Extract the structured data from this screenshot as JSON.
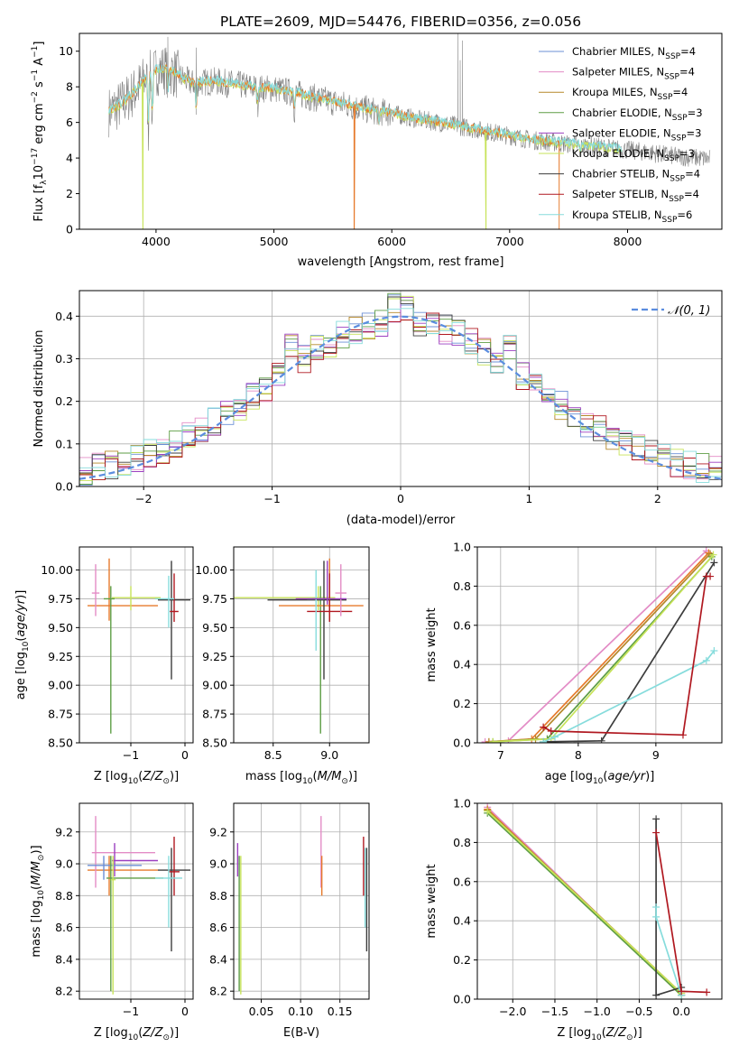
{
  "figure_title": "PLATE=2609, MJD=54476, FIBERID=0356, z=0.056",
  "colors": {
    "Chabrier MILES": "#6b8fd6",
    "Salpeter MILES": "#e38cc6",
    "Kroupa MILES": "#b5882a",
    "Chabrier ELODIE": "#5e9e45",
    "Salpeter ELODIE": "#9b3fc0",
    "Kroupa ELODIE": "#c7e359",
    "Chabrier STELIB": "#3d3d3d",
    "Salpeter STELIB": "#b01820",
    "Kroupa STELIB": "#86dcdc",
    "Orange": "#e67a2c",
    "Data": "#808080",
    "Gaussian": "#5b8ddf"
  },
  "chart_data": [
    {
      "id": "spectrum",
      "type": "line",
      "title": "PLATE=2609, MJD=54476, FIBERID=0356, z=0.056",
      "xlabel": "wavelength [Angstrom, rest frame]",
      "ylabel": "Flux [fλ 10⁻¹⁷ erg cm⁻² s⁻¹ A⁻¹]",
      "xlim": [
        3350,
        8800
      ],
      "ylim": [
        0,
        11
      ],
      "xticks": [
        4000,
        5000,
        6000,
        7000,
        8000
      ],
      "yticks": [
        0,
        2,
        4,
        6,
        8,
        10
      ],
      "grid": false,
      "legend_position": "top-right",
      "legend": [
        {
          "label": "Chabrier MILES, N_SSP=4",
          "main": "Chabrier MILES, N",
          "sub": "SSP",
          "val": "=4"
        },
        {
          "label": "Salpeter MILES, N_SSP=4",
          "main": "Salpeter MILES, N",
          "sub": "SSP",
          "val": "=4"
        },
        {
          "label": "Kroupa MILES, N_SSP=4",
          "main": "Kroupa MILES, N",
          "sub": "SSP",
          "val": "=4"
        },
        {
          "label": "Chabrier ELODIE, N_SSP=3",
          "main": "Chabrier ELODIE, N",
          "sub": "SSP",
          "val": "=3"
        },
        {
          "label": "Salpeter ELODIE, N_SSP=3",
          "main": "Salpeter ELODIE, N",
          "sub": "SSP",
          "val": "=3"
        },
        {
          "label": "Kroupa ELODIE, N_SSP=3",
          "main": "Kroupa ELODIE, N",
          "sub": "SSP",
          "val": "=3"
        },
        {
          "label": "Chabrier STELIB, N_SSP=4",
          "main": "Chabrier STELIB, N",
          "sub": "SSP",
          "val": "=4"
        },
        {
          "label": "Salpeter STELIB, N_SSP=4",
          "main": "Salpeter STELIB, N",
          "sub": "SSP",
          "val": "=4"
        },
        {
          "label": "Kroupa STELIB, N_SSP=6",
          "main": "Kroupa STELIB, N",
          "sub": "SSP",
          "val": "=6"
        }
      ],
      "continuum": [
        [
          3600,
          6.6
        ],
        [
          3700,
          7.0
        ],
        [
          3800,
          7.6
        ],
        [
          3900,
          8.4
        ],
        [
          4000,
          8.9
        ],
        [
          4100,
          9.0
        ],
        [
          4200,
          8.6
        ],
        [
          4300,
          8.2
        ],
        [
          4500,
          8.3
        ],
        [
          4700,
          8.1
        ],
        [
          4900,
          7.9
        ],
        [
          5000,
          7.9
        ],
        [
          5200,
          7.6
        ],
        [
          5400,
          7.3
        ],
        [
          5600,
          7.0
        ],
        [
          5800,
          6.7
        ],
        [
          6000,
          6.5
        ],
        [
          6200,
          6.2
        ],
        [
          6400,
          6.0
        ],
        [
          6600,
          5.75
        ],
        [
          6800,
          5.5
        ],
        [
          7000,
          5.25
        ],
        [
          7200,
          5.0
        ],
        [
          7400,
          4.85
        ],
        [
          7600,
          4.7
        ],
        [
          7800,
          4.6
        ],
        [
          8000,
          4.45
        ],
        [
          8200,
          4.3
        ],
        [
          8400,
          4.1
        ],
        [
          8600,
          4.0
        ],
        [
          8700,
          3.95
        ]
      ],
      "model_dropouts": [
        [
          3890,
          "Kroupa ELODIE"
        ],
        [
          5680,
          "Orange"
        ],
        [
          6800,
          "Kroupa ELODIE"
        ],
        [
          7420,
          "Orange"
        ]
      ],
      "data_spikes": [
        [
          6560,
          11.0
        ],
        [
          6600,
          10.6
        ],
        [
          6580,
          9.5
        ],
        [
          4100,
          10.8
        ],
        [
          4340,
          10.2
        ]
      ]
    },
    {
      "id": "residuals",
      "type": "step",
      "xlabel": "(data-model)/error",
      "ylabel": "Normed distribution",
      "xlim": [
        -2.5,
        2.5
      ],
      "ylim": [
        0,
        0.46
      ],
      "xticks": [
        -2,
        -1,
        0,
        1,
        2
      ],
      "yticks": [
        0.0,
        0.1,
        0.2,
        0.3,
        0.4
      ],
      "grid": true,
      "legend_position": "top-right",
      "legend_label": "𝒩(0, 1)",
      "gaussian": {
        "mean": 0,
        "sigma": 1
      }
    },
    {
      "id": "age-vs-Z",
      "type": "errorbar",
      "xlabel": "Z [log10(Z/Z⊙)]",
      "ylabel": "age  [log10(age/yr)]",
      "xlim": [
        -1.95,
        0.15
      ],
      "ylim": [
        8.5,
        10.2
      ],
      "xticks": [
        -1,
        0
      ],
      "yticks": [
        8.5,
        8.75,
        9.0,
        9.25,
        9.5,
        9.75,
        10.0
      ],
      "grid": true,
      "points": [
        {
          "c": "Orange",
          "x": -1.4,
          "xl": -1.8,
          "xh": -0.5,
          "y": 9.69,
          "yl": 9.56,
          "yh": 10.1
        },
        {
          "c": "Salpeter MILES",
          "x": -1.65,
          "xl": -1.72,
          "xh": -1.58,
          "y": 9.8,
          "yl": 9.6,
          "yh": 10.05
        },
        {
          "c": "Kroupa ELODIE",
          "x": -1.0,
          "xl": -1.35,
          "xh": -0.45,
          "y": 9.76,
          "yl": 9.65,
          "yh": 9.86
        },
        {
          "c": "Chabrier ELODIE",
          "x": -1.37,
          "xl": -1.5,
          "xh": -1.3,
          "y": 9.75,
          "yl": 8.58,
          "yh": 9.86
        },
        {
          "c": "Chabrier STELIB",
          "x": -0.25,
          "xl": -0.5,
          "xh": 0.1,
          "y": 9.74,
          "yl": 9.05,
          "yh": 10.08
        },
        {
          "c": "Salpeter STELIB",
          "x": -0.2,
          "xl": -0.28,
          "xh": -0.12,
          "y": 9.64,
          "yl": 9.55,
          "yh": 9.97
        },
        {
          "c": "Kroupa STELIB",
          "x": -0.3,
          "xl": -0.55,
          "xh": -0.2,
          "y": 9.75,
          "yl": 9.5,
          "yh": 9.95
        }
      ]
    },
    {
      "id": "age-vs-mass",
      "type": "errorbar",
      "xlabel": "mass [log10(M/M⊙)]",
      "xlim": [
        8.15,
        9.35
      ],
      "ylim": [
        8.5,
        10.2
      ],
      "xticks": [
        8.5,
        9.0
      ],
      "yticks": [
        8.5,
        8.75,
        9.0,
        9.25,
        9.5,
        9.75,
        10.0
      ],
      "grid": true,
      "points": [
        {
          "c": "Kroupa ELODIE",
          "x": 8.9,
          "xl": 8.15,
          "xh": 9.05,
          "y": 9.76,
          "yl": 9.65,
          "yh": 9.86
        },
        {
          "c": "Chabrier ELODIE",
          "x": 8.92,
          "xl": 8.85,
          "xh": 9.0,
          "y": 9.75,
          "yl": 8.58,
          "yh": 9.86
        },
        {
          "c": "Orange",
          "x": 9.0,
          "xl": 8.55,
          "xh": 9.3,
          "y": 9.69,
          "yl": 9.56,
          "yh": 10.1
        },
        {
          "c": "Chabrier STELIB",
          "x": 8.95,
          "xl": 8.45,
          "xh": 9.15,
          "y": 9.74,
          "yl": 9.05,
          "yh": 10.08
        },
        {
          "c": "Salpeter STELIB",
          "x": 9.0,
          "xl": 8.8,
          "xh": 9.2,
          "y": 9.64,
          "yl": 9.55,
          "yh": 9.97
        },
        {
          "c": "Kroupa STELIB",
          "x": 8.88,
          "xl": 8.8,
          "xh": 8.95,
          "y": 9.75,
          "yl": 9.3,
          "yh": 10.0
        },
        {
          "c": "Salpeter MILES",
          "x": 9.1,
          "xl": 9.05,
          "xh": 9.15,
          "y": 9.8,
          "yl": 9.6,
          "yh": 10.05
        },
        {
          "c": "Salpeter ELODIE",
          "x": 8.98,
          "xl": 8.7,
          "xh": 9.15,
          "y": 9.75,
          "yl": 9.7,
          "yh": 10.08
        }
      ]
    },
    {
      "id": "massweight-vs-age",
      "type": "line",
      "xlabel": "age  [log10(age/yr)]",
      "ylabel": "mass weight",
      "xlim": [
        6.7,
        9.85
      ],
      "ylim": [
        0,
        1.0
      ],
      "xticks": [
        7,
        8,
        9
      ],
      "yticks": [
        0.0,
        0.2,
        0.4,
        0.6,
        0.8,
        1.0
      ],
      "grid": true,
      "series": [
        {
          "c": "Salpeter MILES",
          "x": [
            6.8,
            7.1,
            9.65
          ],
          "y": [
            0.005,
            0.01,
            0.98
          ]
        },
        {
          "c": "Orange",
          "x": [
            6.85,
            7.4,
            9.68
          ],
          "y": [
            0.005,
            0.02,
            0.97
          ]
        },
        {
          "c": "Kroupa MILES",
          "x": [
            6.85,
            7.45,
            9.7
          ],
          "y": [
            0.005,
            0.02,
            0.965
          ]
        },
        {
          "c": "Chabrier ELODIE",
          "x": [
            6.9,
            7.6,
            9.72
          ],
          "y": [
            0.005,
            0.02,
            0.95
          ]
        },
        {
          "c": "Kroupa ELODIE",
          "x": [
            6.9,
            7.65,
            9.74
          ],
          "y": [
            0.005,
            0.02,
            0.96
          ]
        },
        {
          "c": "Chabrier STELIB",
          "x": [
            7.55,
            8.3,
            9.75
          ],
          "y": [
            0.005,
            0.01,
            0.92
          ]
        },
        {
          "c": "Kroupa STELIB",
          "x": [
            7.55,
            7.7,
            9.65,
            9.75
          ],
          "y": [
            0.005,
            0.03,
            0.42,
            0.47
          ]
        },
        {
          "c": "Salpeter STELIB",
          "x": [
            7.55,
            7.65,
            9.35,
            9.65,
            9.7
          ],
          "y": [
            0.08,
            0.06,
            0.04,
            0.85,
            0.85
          ]
        }
      ]
    },
    {
      "id": "mass-vs-Z",
      "type": "errorbar",
      "xlabel": "Z [log10(Z/Z⊙)]",
      "ylabel": "mass [log10(M/M⊙)]",
      "xlim": [
        -1.95,
        0.15
      ],
      "ylim": [
        8.15,
        9.38
      ],
      "xticks": [
        -1,
        0
      ],
      "yticks": [
        8.2,
        8.4,
        8.6,
        8.8,
        9.0,
        9.2
      ],
      "grid": true,
      "points": [
        {
          "c": "Orange",
          "x": -1.4,
          "xl": -1.8,
          "xh": -0.5,
          "y": 8.96,
          "yl": 8.8,
          "yh": 9.05
        },
        {
          "c": "Salpeter MILES",
          "x": -1.65,
          "xl": -1.72,
          "xh": -0.55,
          "y": 9.07,
          "yl": 8.85,
          "yh": 9.3
        },
        {
          "c": "Salpeter ELODIE",
          "x": -1.3,
          "xl": -1.35,
          "xh": -0.5,
          "y": 9.02,
          "yl": 8.92,
          "yh": 9.13
        },
        {
          "c": "Chabrier MILES",
          "x": -1.5,
          "xl": -1.8,
          "xh": -0.8,
          "y": 8.99,
          "yl": 8.9,
          "yh": 9.05
        },
        {
          "c": "Chabrier ELODIE",
          "x": -1.37,
          "xl": -1.45,
          "xh": -0.4,
          "y": 8.91,
          "yl": 8.2,
          "yh": 9.05
        },
        {
          "c": "Kroupa ELODIE",
          "x": -1.33,
          "xl": -1.37,
          "xh": -1.28,
          "y": 8.9,
          "yl": 8.18,
          "yh": 9.05
        },
        {
          "c": "Chabrier STELIB",
          "x": -0.25,
          "xl": -0.5,
          "xh": 0.1,
          "y": 8.96,
          "yl": 8.45,
          "yh": 9.1
        },
        {
          "c": "Salpeter STELIB",
          "x": -0.2,
          "xl": -0.3,
          "xh": -0.1,
          "y": 8.95,
          "yl": 8.8,
          "yh": 9.17
        },
        {
          "c": "Kroupa STELIB",
          "x": -0.3,
          "xl": -0.55,
          "xh": -0.05,
          "y": 8.91,
          "yl": 8.6,
          "yh": 9.05
        }
      ]
    },
    {
      "id": "mass-vs-EBV",
      "type": "errorbar",
      "xlabel": "E(B-V)",
      "xlim": [
        0.015,
        0.187
      ],
      "ylim": [
        8.15,
        9.38
      ],
      "xticks": [
        0.05,
        0.1,
        0.15
      ],
      "yticks": [
        8.2,
        8.4,
        8.6,
        8.8,
        9.0,
        9.2
      ],
      "grid": true,
      "points": [
        {
          "c": "Chabrier ELODIE",
          "x": 0.022,
          "y": 8.91,
          "yl": 8.2,
          "yh": 9.05
        },
        {
          "c": "Kroupa ELODIE",
          "x": 0.024,
          "y": 8.9,
          "yl": 8.18,
          "yh": 9.05
        },
        {
          "c": "Salpeter ELODIE",
          "x": 0.02,
          "y": 9.02,
          "yl": 8.92,
          "yh": 9.13
        },
        {
          "c": "Salpeter MILES",
          "x": 0.126,
          "y": 9.07,
          "yl": 8.85,
          "yh": 9.3
        },
        {
          "c": "Orange",
          "x": 0.127,
          "y": 8.96,
          "yl": 8.8,
          "yh": 9.05
        },
        {
          "c": "Salpeter STELIB",
          "x": 0.18,
          "y": 8.95,
          "yl": 8.8,
          "yh": 9.17
        },
        {
          "c": "Kroupa STELIB",
          "x": 0.182,
          "y": 8.91,
          "yl": 8.6,
          "yh": 9.1
        },
        {
          "c": "Chabrier STELIB",
          "x": 0.184,
          "y": 8.96,
          "yl": 8.45,
          "yh": 9.1
        }
      ]
    },
    {
      "id": "massweight-vs-Z",
      "type": "line",
      "xlabel": "Z [log10(Z/Z⊙)]",
      "ylabel": "mass weight",
      "xlim": [
        -2.42,
        0.48
      ],
      "ylim": [
        0,
        1.0
      ],
      "xticks": [
        -2.0,
        -1.5,
        -1.0,
        -0.5,
        0.0
      ],
      "yticks": [
        0.0,
        0.2,
        0.4,
        0.6,
        0.8,
        1.0
      ],
      "grid": true,
      "series": [
        {
          "c": "Salpeter MILES",
          "x": [
            -2.3,
            0.0
          ],
          "y": [
            0.98,
            0.02
          ]
        },
        {
          "c": "Orange",
          "x": [
            -2.3,
            0.0
          ],
          "y": [
            0.97,
            0.02
          ]
        },
        {
          "c": "Kroupa MILES",
          "x": [
            -2.3,
            0.0
          ],
          "y": [
            0.965,
            0.03
          ]
        },
        {
          "c": "Chabrier ELODIE",
          "x": [
            -2.3,
            0.0
          ],
          "y": [
            0.95,
            0.02
          ]
        },
        {
          "c": "Kroupa ELODIE",
          "x": [
            -2.3,
            0.0
          ],
          "y": [
            0.96,
            0.03
          ]
        },
        {
          "c": "Chabrier STELIB",
          "x": [
            -0.3,
            -0.3,
            0.0
          ],
          "y": [
            0.92,
            0.02,
            0.06
          ]
        },
        {
          "c": "Kroupa STELIB",
          "x": [
            -0.3,
            -0.3,
            0.0
          ],
          "y": [
            0.47,
            0.42,
            0.02
          ]
        },
        {
          "c": "Salpeter STELIB",
          "x": [
            -0.3,
            0.0,
            0.3
          ],
          "y": [
            0.85,
            0.04,
            0.035
          ]
        }
      ]
    }
  ]
}
